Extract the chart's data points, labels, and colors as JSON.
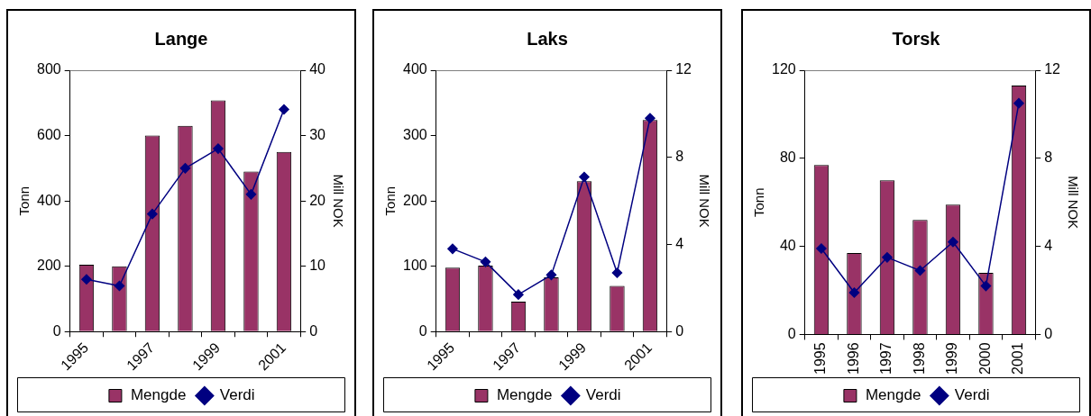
{
  "chart_data": [
    {
      "type": "bar",
      "title": "Lange",
      "ylabel": "Tonn",
      "y2label": "Mill NOK",
      "categories": [
        "1995",
        null,
        "1997",
        null,
        "1999",
        null,
        "2001"
      ],
      "ylim": [
        0,
        800
      ],
      "yticks": [
        0,
        200,
        400,
        600,
        800
      ],
      "y2lim": [
        0,
        40
      ],
      "y2ticks": [
        0,
        10,
        20,
        30,
        40
      ],
      "grid": false,
      "legend": "bottom",
      "marker": "diamond",
      "series": [
        {
          "name": "Mengde",
          "color": "#993366",
          "values": [
            205,
            200,
            600,
            630,
            708,
            490,
            550
          ]
        },
        {
          "name": "Verdi",
          "type": "line",
          "axis": "y2",
          "color": "#000080",
          "values": [
            8,
            7,
            18,
            25,
            28,
            21,
            34
          ]
        }
      ]
    },
    {
      "type": "bar",
      "title": "Laks",
      "ylabel": "Tonn",
      "y2label": "Mill NOK",
      "categories": [
        "1995",
        null,
        "1997",
        null,
        "1999",
        null,
        "2001"
      ],
      "ylim": [
        0,
        400
      ],
      "yticks": [
        0,
        100,
        200,
        300,
        400
      ],
      "y2lim": [
        0,
        12
      ],
      "y2ticks": [
        0,
        4,
        8,
        12
      ],
      "grid": false,
      "legend": "bottom",
      "marker": "diamond",
      "series": [
        {
          "name": "Mengde",
          "color": "#993366",
          "values": [
            98,
            101,
            46,
            83,
            230,
            70,
            324
          ]
        },
        {
          "name": "Verdi",
          "type": "line",
          "axis": "y2",
          "color": "#000080",
          "values": [
            3.8,
            3.2,
            1.7,
            2.6,
            7.1,
            2.7,
            9.8
          ]
        }
      ]
    },
    {
      "type": "bar",
      "title": "Torsk",
      "ylabel": "Tonn",
      "y2label": "Mill NOK",
      "categories": [
        "1995",
        "1996",
        "1997",
        "1998",
        "1999",
        "2000",
        "2001"
      ],
      "ylim": [
        0,
        120
      ],
      "yticks": [
        0,
        40,
        80,
        120
      ],
      "y2lim": [
        0,
        12
      ],
      "y2ticks": [
        0,
        4,
        8,
        12
      ],
      "grid": false,
      "legend": "bottom",
      "marker": "diamond",
      "series": [
        {
          "name": "Mengde",
          "color": "#993366",
          "values": [
            77,
            37,
            70,
            52,
            59,
            28,
            113
          ]
        },
        {
          "name": "Verdi",
          "type": "line",
          "axis": "y2",
          "color": "#000080",
          "values": [
            3.9,
            1.9,
            3.5,
            2.9,
            4.2,
            2.2,
            10.5
          ]
        }
      ]
    }
  ]
}
